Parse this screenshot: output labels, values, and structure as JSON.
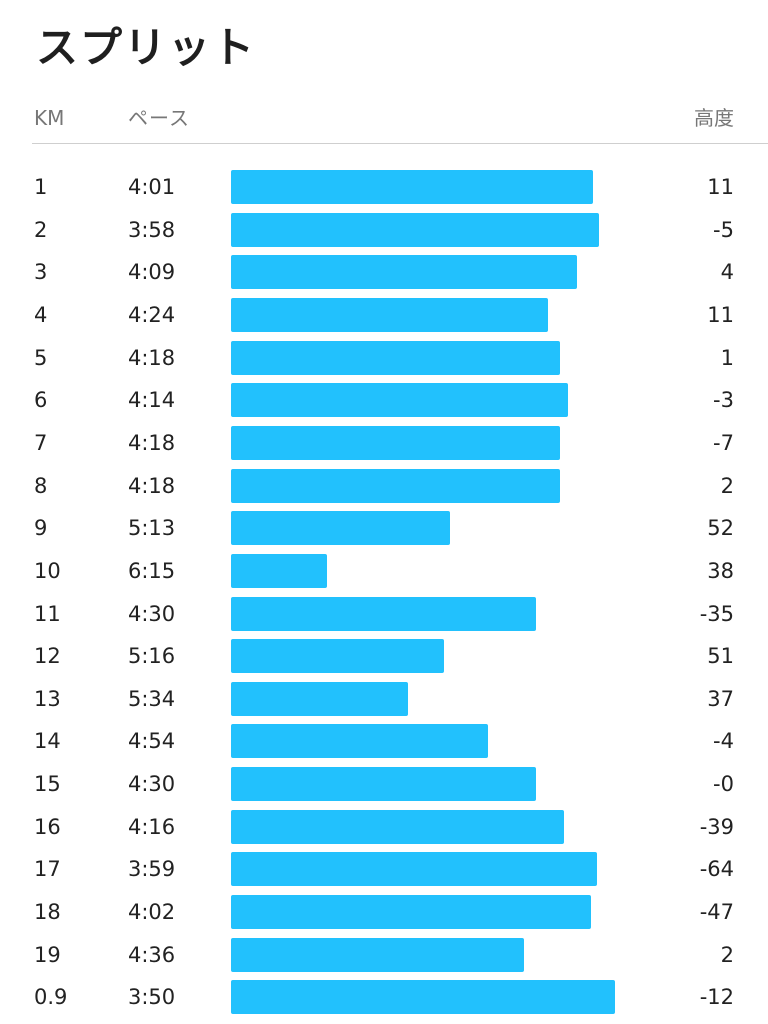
{
  "header": {
    "title": "スプリット",
    "col_km": "KM",
    "col_pace": "ペース",
    "col_elev": "高度"
  },
  "colors": {
    "bar": "#22c1fd"
  },
  "chart_data": {
    "type": "bar",
    "orientation": "horizontal",
    "title": "スプリット",
    "categories": [
      "1",
      "2",
      "3",
      "4",
      "5",
      "6",
      "7",
      "8",
      "9",
      "10",
      "11",
      "12",
      "13",
      "14",
      "15",
      "16",
      "17",
      "18",
      "19",
      "0.9"
    ],
    "pace_labels": [
      "4:01",
      "3:58",
      "4:09",
      "4:24",
      "4:18",
      "4:14",
      "4:18",
      "4:18",
      "5:13",
      "6:15",
      "4:30",
      "5:16",
      "5:34",
      "4:54",
      "4:30",
      "4:16",
      "3:59",
      "4:02",
      "4:36",
      "3:50"
    ],
    "pace_seconds": [
      241,
      238,
      249,
      264,
      258,
      254,
      258,
      258,
      313,
      375,
      270,
      316,
      334,
      294,
      270,
      256,
      239,
      242,
      276,
      230
    ],
    "elevation": [
      "11",
      "-5",
      "4",
      "11",
      "1",
      "-3",
      "-7",
      "2",
      "52",
      "38",
      "-35",
      "51",
      "37",
      "-4",
      "-0",
      "-39",
      "-64",
      "-47",
      "2",
      "-12"
    ],
    "grid": false,
    "legend": "none"
  }
}
